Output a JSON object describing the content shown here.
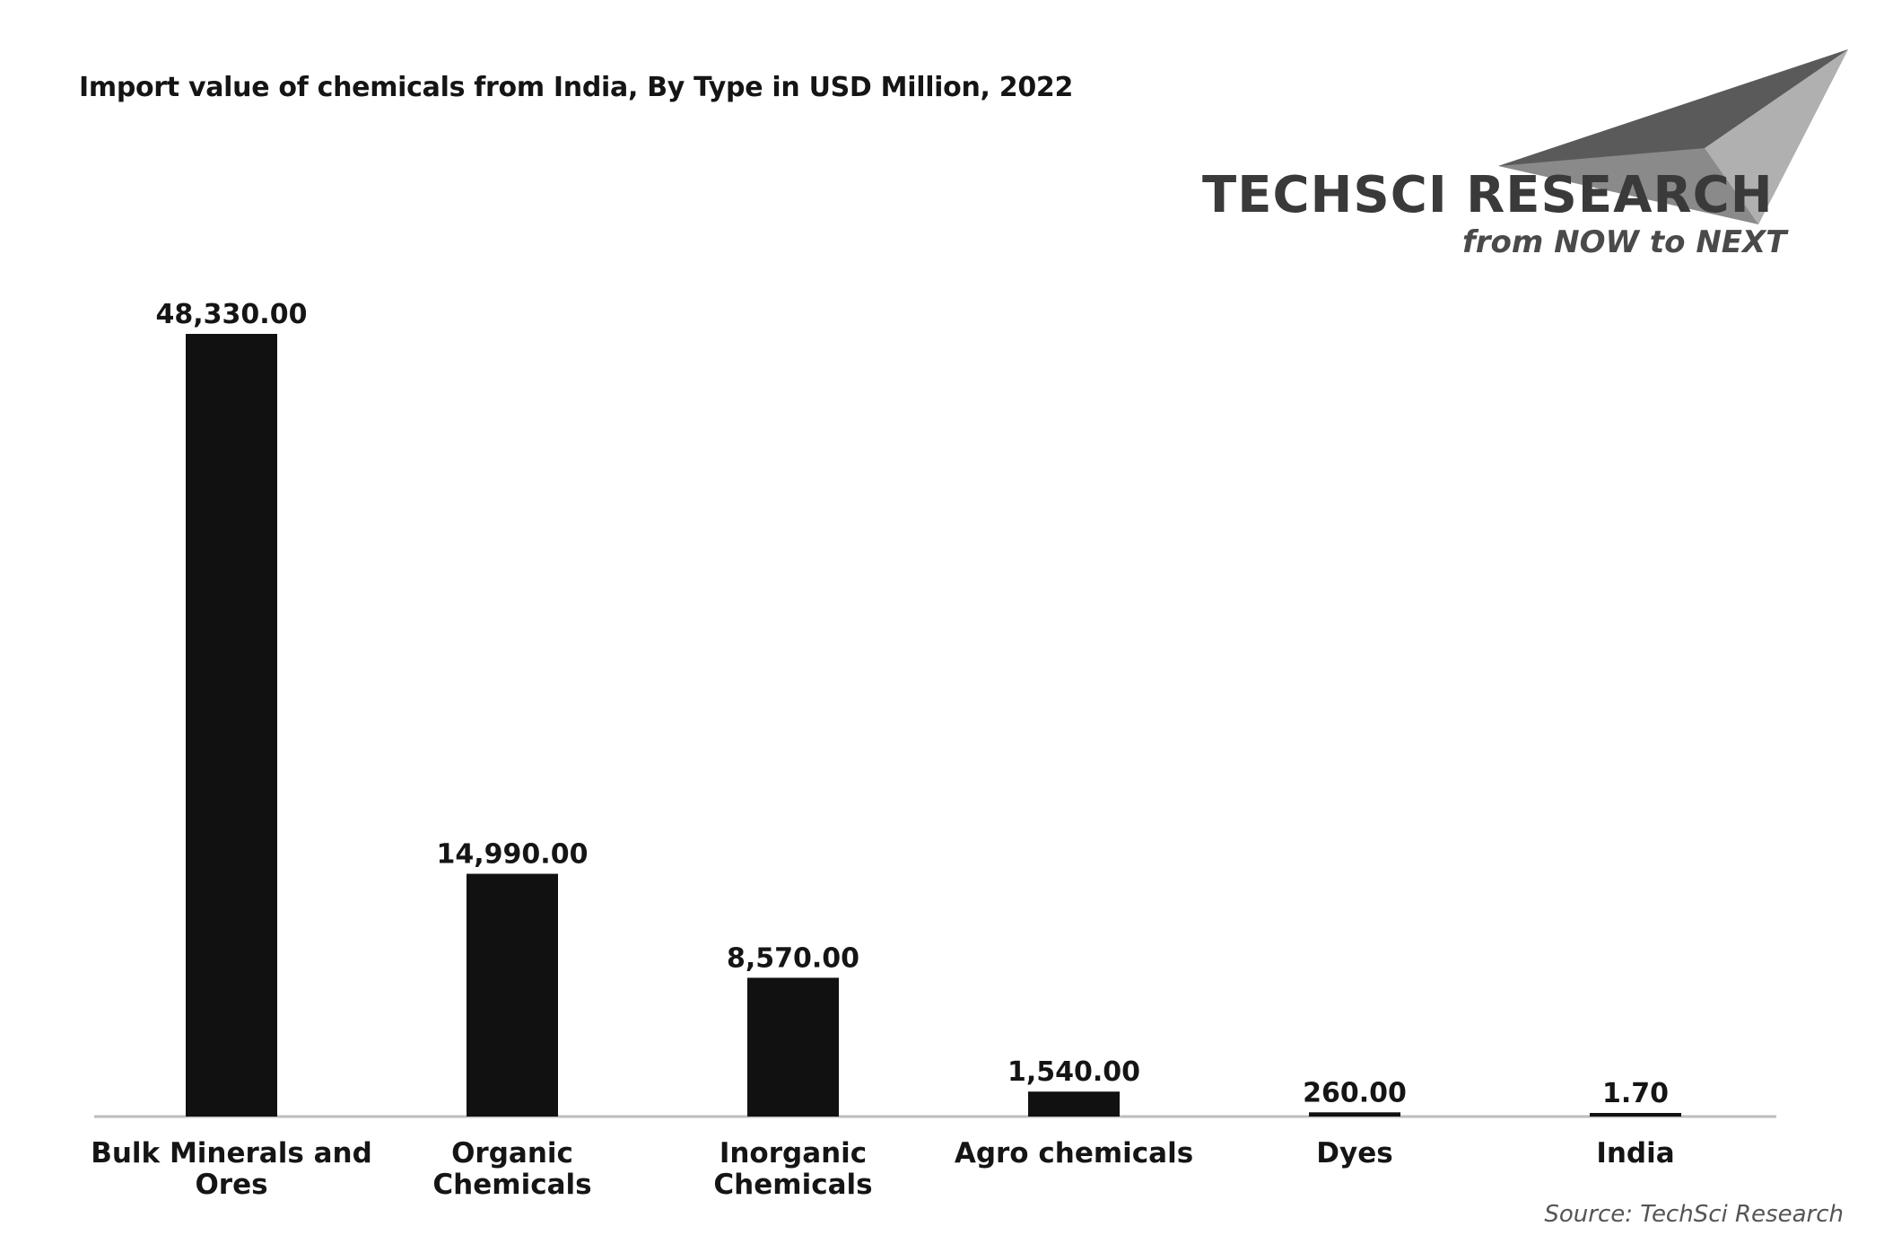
{
  "header": {
    "title": "Import value of chemicals from India, By Type in USD Million, 2022"
  },
  "logo": {
    "name": "TECHSCI RESEARCH",
    "tagline": "from NOW to NEXT"
  },
  "footer": {
    "source": "Source: TechSci Research"
  },
  "colors": {
    "bar": "#111111",
    "axis": "#bdbdbd",
    "text": "#151515"
  },
  "chart_data": {
    "type": "bar",
    "title": "Import value of chemicals from India, By Type in USD Million, 2022",
    "xlabel": "",
    "ylabel": "",
    "categories": [
      [
        "Bulk Minerals and",
        "Ores"
      ],
      [
        "Organic",
        "Chemicals"
      ],
      [
        "Inorganic",
        "Chemicals"
      ],
      [
        "Agro chemicals"
      ],
      [
        "Dyes"
      ],
      [
        "India"
      ]
    ],
    "values": [
      48330.0,
      14990.0,
      8570.0,
      1540.0,
      260.0,
      1.7
    ],
    "value_labels": [
      "48,330.00",
      "14,990.00",
      "8,570.00",
      "1,540.00",
      "260.00",
      "1.70"
    ],
    "ylim": [
      0,
      48330
    ],
    "grid": false,
    "legend": "none"
  }
}
